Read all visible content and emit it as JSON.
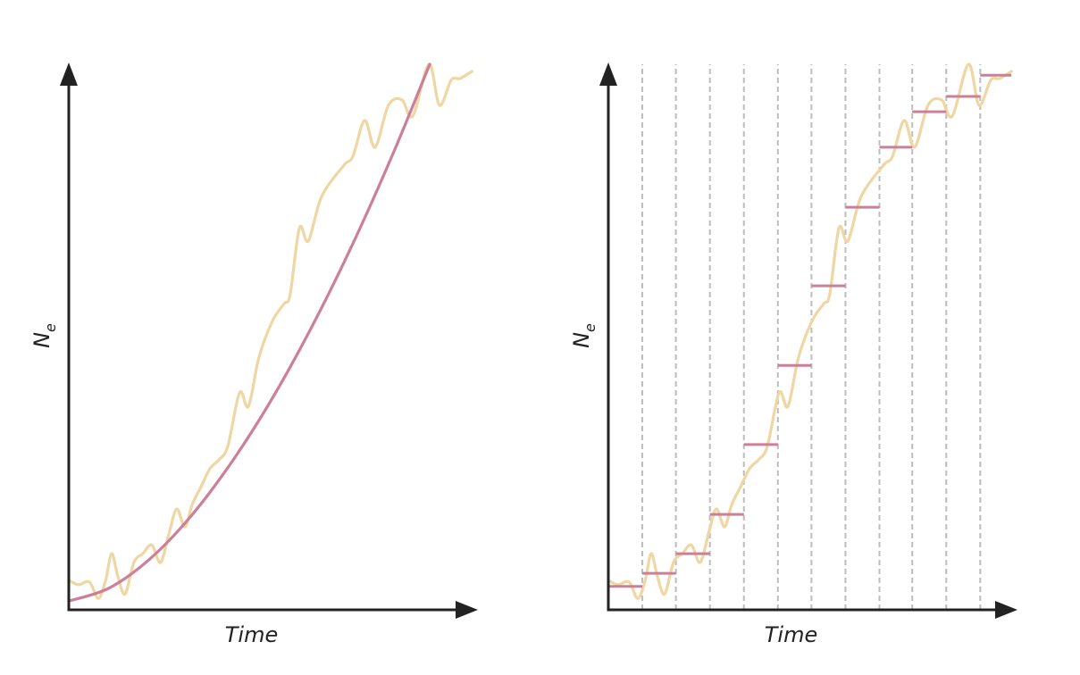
{
  "chart_data": [
    {
      "type": "line",
      "xlabel": "Time",
      "ylabel": "N",
      "ylabel_subscript": "e",
      "xlim": [
        0,
        100
      ],
      "ylim": [
        0,
        100
      ],
      "series": [
        {
          "color": "#efd6a2",
          "x": [
            0,
            2.4,
            5.1,
            7.3,
            9.1,
            10.6,
            12.1,
            13.9,
            16.1,
            18.3,
            20.5,
            22.7,
            24.9,
            26.7,
            28.7,
            30.5,
            32.7,
            34.9,
            37.1,
            39.3,
            42.2,
            44.4,
            47.0,
            50.3,
            53.2,
            54.7,
            57.0,
            59.2,
            62.5,
            68.0,
            70.2,
            73.1,
            75.7,
            79.0,
            82.3,
            85.0,
            89.0,
            91.6,
            94.5,
            96.7,
            99.6
          ],
          "values": [
            5.4,
            4.6,
            5.1,
            2.1,
            5.4,
            10.3,
            6.2,
            2.9,
            8.7,
            10.3,
            11.9,
            8.7,
            14.4,
            18.5,
            15.2,
            19.3,
            22.6,
            25.9,
            27.5,
            30.0,
            39.8,
            37.3,
            46.3,
            52.9,
            56.1,
            57.8,
            70.0,
            67.6,
            75.8,
            81.5,
            83.1,
            89.7,
            84.8,
            92.5,
            93.5,
            90.5,
            100,
            92.5,
            97.1,
            97.4,
            98.7
          ]
        },
        {
          "color": "#cc7f99",
          "x": [
            0,
            10,
            20,
            30,
            40,
            50,
            60,
            70,
            80,
            89.2
          ],
          "values": [
            1.6,
            4.0,
            9.3,
            17.0,
            26.8,
            38.4,
            51.8,
            66.8,
            83.4,
            100
          ]
        }
      ]
    },
    {
      "type": "line",
      "xlabel": "Time",
      "ylabel": "N",
      "ylabel_subscript": "e",
      "xlim": [
        0,
        100
      ],
      "ylim": [
        0,
        100
      ],
      "series": [
        {
          "color": "#efd6a2",
          "x": [
            0,
            2.4,
            5.1,
            7.3,
            9.1,
            10.6,
            12.1,
            13.9,
            16.1,
            18.3,
            20.5,
            22.7,
            24.9,
            26.7,
            28.7,
            30.5,
            32.7,
            34.9,
            37.1,
            39.3,
            42.2,
            44.4,
            47.0,
            50.3,
            53.2,
            54.7,
            57.0,
            59.2,
            62.5,
            68.0,
            70.2,
            73.1,
            75.7,
            79.0,
            82.3,
            85.0,
            89.0,
            91.6,
            94.5,
            96.7,
            99.6
          ],
          "values": [
            5.4,
            4.6,
            5.1,
            2.1,
            5.4,
            10.3,
            6.2,
            2.9,
            8.7,
            10.3,
            11.9,
            8.7,
            14.4,
            18.5,
            15.2,
            19.3,
            22.6,
            25.9,
            27.5,
            30.0,
            39.8,
            37.3,
            46.3,
            52.9,
            56.1,
            57.8,
            70.0,
            67.6,
            75.8,
            81.5,
            83.1,
            89.7,
            84.8,
            92.5,
            93.5,
            90.5,
            100,
            92.5,
            97.1,
            97.4,
            98.7
          ]
        }
      ],
      "steps": {
        "color": "#cc7f99",
        "bins": [
          0,
          8.4,
          16.7,
          25.1,
          33.5,
          41.9,
          50.2,
          58.6,
          67.0,
          75.1,
          83.5,
          91.9,
          99.6
        ],
        "values": [
          4.3,
          6.7,
          10.3,
          17.5,
          30.3,
          44.8,
          59.4,
          73.8,
          84.8,
          91.3,
          94.1,
          98.0
        ]
      }
    }
  ]
}
